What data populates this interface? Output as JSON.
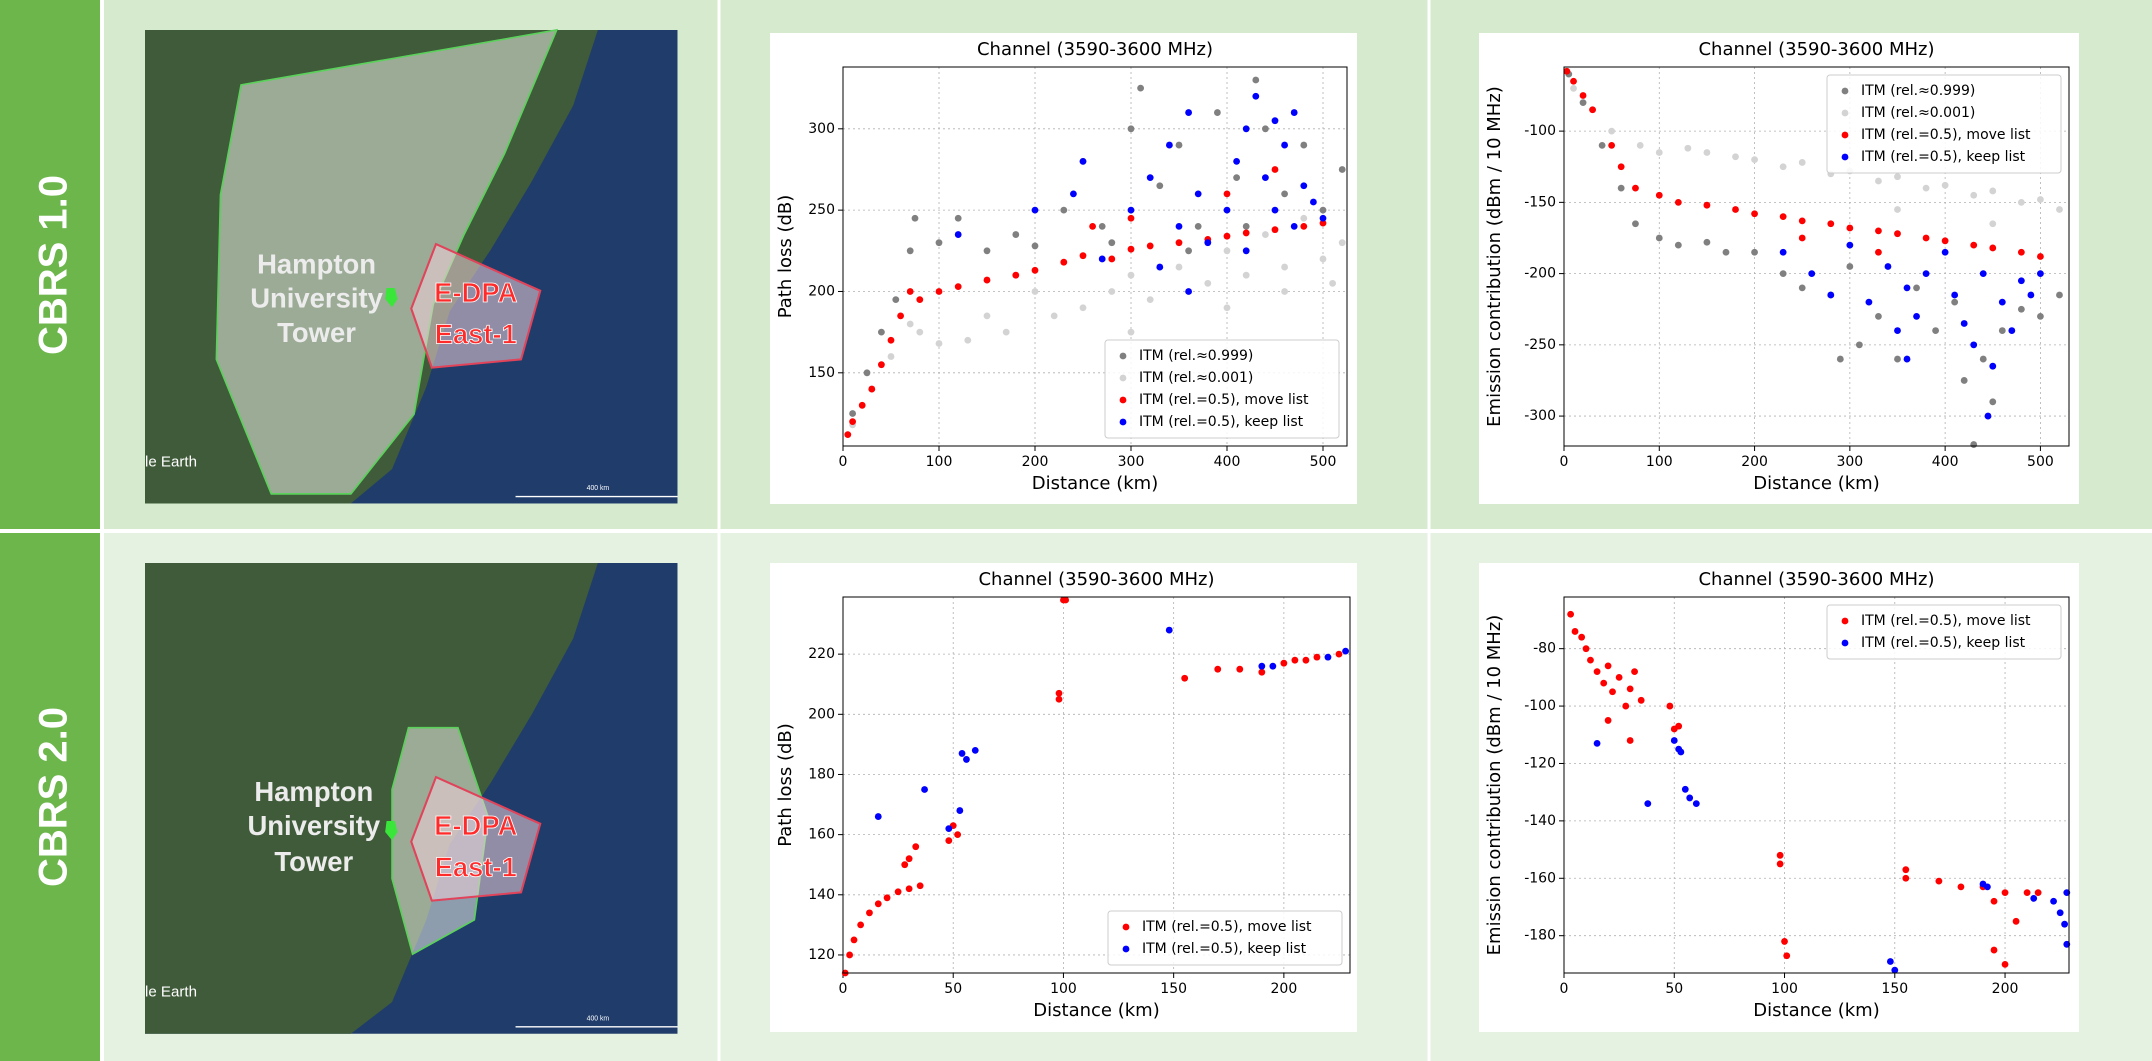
{
  "rows": [
    {
      "label": "CBRS 1.0",
      "map": {
        "site_label": [
          "Hampton",
          "University",
          "Tower"
        ],
        "zone_label": [
          "E-DPA",
          "East-1"
        ],
        "attribution": "le Earth",
        "scale_label": "400 km"
      }
    },
    {
      "label": "CBRS 2.0",
      "map": {
        "site_label": [
          "Hampton",
          "University",
          "Tower"
        ],
        "zone_label": [
          "E-DPA",
          "East-1"
        ],
        "attribution": "le Earth",
        "scale_label": "400 km"
      }
    }
  ],
  "chart_data": [
    {
      "type": "scatter",
      "title": "Channel (3590-3600 MHz)",
      "x_label": "Distance (km)",
      "y_label": "Path loss (dB)",
      "xlim": [
        0,
        525
      ],
      "xticks": [
        0,
        100,
        200,
        300,
        400,
        500
      ],
      "ylim": [
        105,
        338
      ],
      "yticks": [
        150,
        200,
        250,
        300
      ],
      "grid": true,
      "legend": "lower right",
      "series": [
        {
          "name": "ITM (rel.≈0.999)",
          "color": "#808080",
          "x": [
            10,
            25,
            40,
            55,
            70,
            75,
            100,
            120,
            150,
            180,
            200,
            230,
            250,
            270,
            300,
            310,
            330,
            350,
            370,
            390,
            410,
            430,
            440,
            460,
            480,
            500,
            520,
            280,
            360,
            420
          ],
          "values": [
            125,
            150,
            175,
            195,
            225,
            245,
            230,
            245,
            225,
            235,
            228,
            250,
            280,
            240,
            300,
            325,
            265,
            290,
            240,
            310,
            270,
            330,
            300,
            260,
            290,
            250,
            275,
            230,
            225,
            240
          ]
        },
        {
          "name": "ITM (rel.≈0.001)",
          "color": "#d3d3d3",
          "x": [
            10,
            30,
            50,
            70,
            80,
            100,
            130,
            150,
            170,
            200,
            220,
            250,
            280,
            300,
            320,
            350,
            380,
            400,
            420,
            440,
            460,
            480,
            500,
            520,
            300,
            400,
            460,
            510
          ],
          "values": [
            118,
            140,
            160,
            180,
            175,
            168,
            170,
            185,
            175,
            200,
            185,
            190,
            200,
            210,
            195,
            215,
            205,
            225,
            210,
            235,
            215,
            245,
            220,
            230,
            175,
            190,
            200,
            205
          ]
        },
        {
          "name": "ITM (rel.=0.5), move list",
          "color": "#ff0000",
          "x": [
            5,
            10,
            20,
            30,
            40,
            50,
            60,
            70,
            80,
            100,
            120,
            150,
            180,
            200,
            230,
            250,
            280,
            300,
            320,
            350,
            380,
            400,
            420,
            450,
            480,
            500,
            260,
            300,
            400,
            450
          ],
          "values": [
            112,
            120,
            130,
            140,
            155,
            170,
            185,
            200,
            195,
            200,
            203,
            207,
            210,
            213,
            218,
            222,
            220,
            226,
            228,
            230,
            232,
            234,
            236,
            238,
            240,
            242,
            240,
            245,
            260,
            275
          ]
        },
        {
          "name": "ITM (rel.=0.5), keep list",
          "color": "#0000ff",
          "x": [
            120,
            200,
            240,
            250,
            270,
            300,
            320,
            340,
            350,
            360,
            370,
            380,
            400,
            410,
            420,
            430,
            440,
            450,
            460,
            470,
            480,
            490,
            500,
            360,
            330,
            450,
            470,
            420
          ],
          "values": [
            235,
            250,
            260,
            280,
            220,
            250,
            270,
            290,
            240,
            310,
            260,
            230,
            250,
            280,
            300,
            320,
            270,
            250,
            290,
            240,
            265,
            255,
            245,
            200,
            215,
            305,
            310,
            225
          ]
        }
      ]
    },
    {
      "type": "scatter",
      "title": "Channel (3590-3600 MHz)",
      "x_label": "Distance (km)",
      "y_label": "Emission contribution (dBm / 10 MHz)",
      "xlim": [
        0,
        530
      ],
      "xticks": [
        0,
        100,
        200,
        300,
        400,
        500
      ],
      "ylim": [
        -321,
        -55
      ],
      "yticks": [
        -300,
        -250,
        -200,
        -150,
        -100
      ],
      "grid": true,
      "legend": "upper right",
      "series": [
        {
          "name": "ITM (rel.≈0.999)",
          "color": "#808080",
          "x": [
            5,
            20,
            40,
            60,
            75,
            100,
            120,
            150,
            170,
            200,
            230,
            250,
            280,
            300,
            310,
            330,
            350,
            370,
            390,
            410,
            420,
            440,
            450,
            460,
            480,
            500,
            520,
            290,
            430
          ],
          "values": [
            -60,
            -80,
            -110,
            -140,
            -165,
            -175,
            -180,
            -178,
            -185,
            -185,
            -200,
            -210,
            -215,
            -195,
            -250,
            -230,
            -260,
            -210,
            -240,
            -220,
            -275,
            -260,
            -290,
            -240,
            -225,
            -230,
            -215,
            -260,
            -320
          ]
        },
        {
          "name": "ITM (rel.≈0.001)",
          "color": "#d3d3d3",
          "x": [
            10,
            30,
            50,
            80,
            100,
            130,
            150,
            180,
            200,
            230,
            250,
            280,
            300,
            330,
            350,
            380,
            400,
            430,
            450,
            480,
            500,
            520,
            350,
            450
          ],
          "values": [
            -70,
            -85,
            -100,
            -110,
            -115,
            -112,
            -115,
            -118,
            -120,
            -125,
            -122,
            -130,
            -128,
            -135,
            -132,
            -140,
            -138,
            -145,
            -142,
            -150,
            -148,
            -155,
            -155,
            -165
          ]
        },
        {
          "name": "ITM (rel.=0.5), move list",
          "color": "#ff0000",
          "x": [
            3,
            10,
            20,
            30,
            50,
            60,
            75,
            100,
            120,
            150,
            180,
            200,
            230,
            250,
            280,
            300,
            330,
            350,
            380,
            400,
            430,
            450,
            480,
            500,
            250,
            330
          ],
          "values": [
            -58,
            -65,
            -75,
            -85,
            -110,
            -125,
            -140,
            -145,
            -150,
            -152,
            -155,
            -158,
            -160,
            -163,
            -165,
            -168,
            -170,
            -172,
            -175,
            -177,
            -180,
            -182,
            -185,
            -188,
            -175,
            -185
          ]
        },
        {
          "name": "ITM (rel.=0.5), keep list",
          "color": "#0000ff",
          "x": [
            230,
            260,
            280,
            300,
            320,
            340,
            350,
            360,
            370,
            380,
            400,
            410,
            420,
            430,
            440,
            450,
            460,
            470,
            480,
            490,
            500,
            445,
            360
          ],
          "values": [
            -185,
            -200,
            -215,
            -180,
            -220,
            -195,
            -240,
            -210,
            -230,
            -200,
            -185,
            -215,
            -235,
            -250,
            -200,
            -265,
            -220,
            -240,
            -205,
            -215,
            -200,
            -300,
            -260
          ]
        }
      ]
    },
    {
      "type": "scatter",
      "title": "Channel (3590-3600 MHz)",
      "x_label": "Distance (km)",
      "y_label": "Path loss (dB)",
      "xlim": [
        0,
        230
      ],
      "xticks": [
        0,
        50,
        100,
        150,
        200
      ],
      "ylim": [
        114,
        239
      ],
      "yticks": [
        120,
        140,
        160,
        180,
        200,
        220
      ],
      "grid": true,
      "legend": "lower right",
      "series": [
        {
          "name": "ITM (rel.=0.5), move list",
          "color": "#ff0000",
          "x": [
            1,
            3,
            5,
            8,
            12,
            16,
            20,
            25,
            30,
            35,
            28,
            30,
            33,
            48,
            50,
            52,
            98,
            98,
            100,
            101,
            155,
            170,
            180,
            190,
            200,
            205,
            210,
            215,
            225
          ],
          "values": [
            114,
            120,
            125,
            130,
            134,
            137,
            139,
            141,
            142,
            143,
            150,
            152,
            156,
            158,
            163,
            160,
            205,
            207,
            238,
            238,
            212,
            215,
            215,
            214,
            217,
            218,
            218,
            219,
            220
          ]
        },
        {
          "name": "ITM (rel.=0.5), keep list",
          "color": "#0000ff",
          "x": [
            16,
            37,
            53,
            54,
            56,
            60,
            48,
            148,
            190,
            195,
            220,
            228
          ],
          "values": [
            166,
            175,
            168,
            187,
            185,
            188,
            162,
            228,
            216,
            216,
            219,
            221
          ]
        }
      ]
    },
    {
      "type": "scatter",
      "title": "Channel (3590-3600 MHz)",
      "x_label": "Distance (km)",
      "y_label": "Emission contribution (dBm / 10 MHz)",
      "xlim": [
        0,
        229
      ],
      "xticks": [
        0,
        50,
        100,
        150,
        200
      ],
      "ylim": [
        -193,
        -62
      ],
      "yticks": [
        -180,
        -160,
        -140,
        -120,
        -100,
        -80
      ],
      "grid": true,
      "legend": "upper right",
      "series": [
        {
          "name": "ITM (rel.=0.5), move list",
          "color": "#ff0000",
          "x": [
            3,
            5,
            8,
            10,
            12,
            15,
            18,
            20,
            22,
            25,
            28,
            30,
            32,
            35,
            20,
            30,
            48,
            50,
            52,
            98,
            98,
            100,
            101,
            155,
            155,
            170,
            180,
            190,
            195,
            200,
            195,
            200,
            205,
            210,
            215
          ],
          "values": [
            -68,
            -74,
            -76,
            -80,
            -84,
            -88,
            -92,
            -86,
            -95,
            -90,
            -100,
            -94,
            -88,
            -98,
            -105,
            -112,
            -100,
            -108,
            -107,
            -152,
            -155,
            -182,
            -187,
            -157,
            -160,
            -161,
            -163,
            -163,
            -168,
            -165,
            -185,
            -190,
            -175,
            -165,
            -165
          ]
        },
        {
          "name": "ITM (rel.=0.5), keep list",
          "color": "#0000ff",
          "x": [
            15,
            38,
            50,
            52,
            53,
            55,
            57,
            60,
            148,
            150,
            190,
            192,
            213,
            222,
            225,
            228,
            227,
            228
          ],
          "values": [
            -113,
            -134,
            -112,
            -115,
            -116,
            -129,
            -132,
            -134,
            -189,
            -192,
            -162,
            -163,
            -167,
            -168,
            -172,
            -165,
            -176,
            -183
          ]
        }
      ]
    }
  ]
}
